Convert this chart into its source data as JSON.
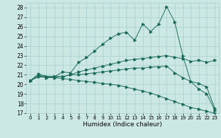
{
  "xlabel": "Humidex (Indice chaleur)",
  "xlim": [
    -0.5,
    23.5
  ],
  "ylim": [
    17,
    28.5
  ],
  "yticks": [
    17,
    18,
    19,
    20,
    21,
    22,
    23,
    24,
    25,
    26,
    27,
    28
  ],
  "xticks": [
    0,
    1,
    2,
    3,
    4,
    5,
    6,
    7,
    8,
    9,
    10,
    11,
    12,
    13,
    14,
    15,
    16,
    17,
    18,
    19,
    20,
    21,
    22,
    23
  ],
  "bg_color": "#cce8e4",
  "line_color": "#1a6b5a",
  "grid_color": "#a8cccc",
  "line1_y": [
    20.4,
    21.1,
    20.8,
    20.8,
    21.3,
    21.2,
    22.3,
    22.8,
    23.5,
    24.2,
    24.8,
    25.3,
    25.4,
    24.6,
    26.3,
    25.5,
    26.3,
    28.1,
    26.5,
    23.0,
    20.3,
    19.5,
    19.0,
    17.3
  ],
  "line2_y": [
    20.4,
    20.9,
    20.8,
    20.8,
    20.8,
    21.0,
    21.3,
    21.5,
    21.7,
    21.9,
    22.1,
    22.3,
    22.5,
    22.6,
    22.7,
    22.8,
    22.9,
    23.0,
    22.8,
    22.7,
    22.4,
    22.5,
    22.3,
    22.5
  ],
  "line3_y": [
    20.4,
    20.9,
    20.8,
    20.8,
    20.8,
    21.0,
    21.0,
    21.1,
    21.2,
    21.3,
    21.4,
    21.5,
    21.6,
    21.7,
    21.7,
    21.8,
    21.85,
    21.9,
    21.2,
    20.7,
    20.3,
    20.1,
    19.7,
    17.5
  ],
  "line4_y": [
    20.4,
    20.8,
    20.7,
    20.7,
    20.6,
    20.5,
    20.4,
    20.3,
    20.2,
    20.1,
    20.0,
    19.9,
    19.7,
    19.5,
    19.3,
    19.1,
    18.8,
    18.5,
    18.2,
    17.9,
    17.6,
    17.4,
    17.2,
    17.0
  ]
}
